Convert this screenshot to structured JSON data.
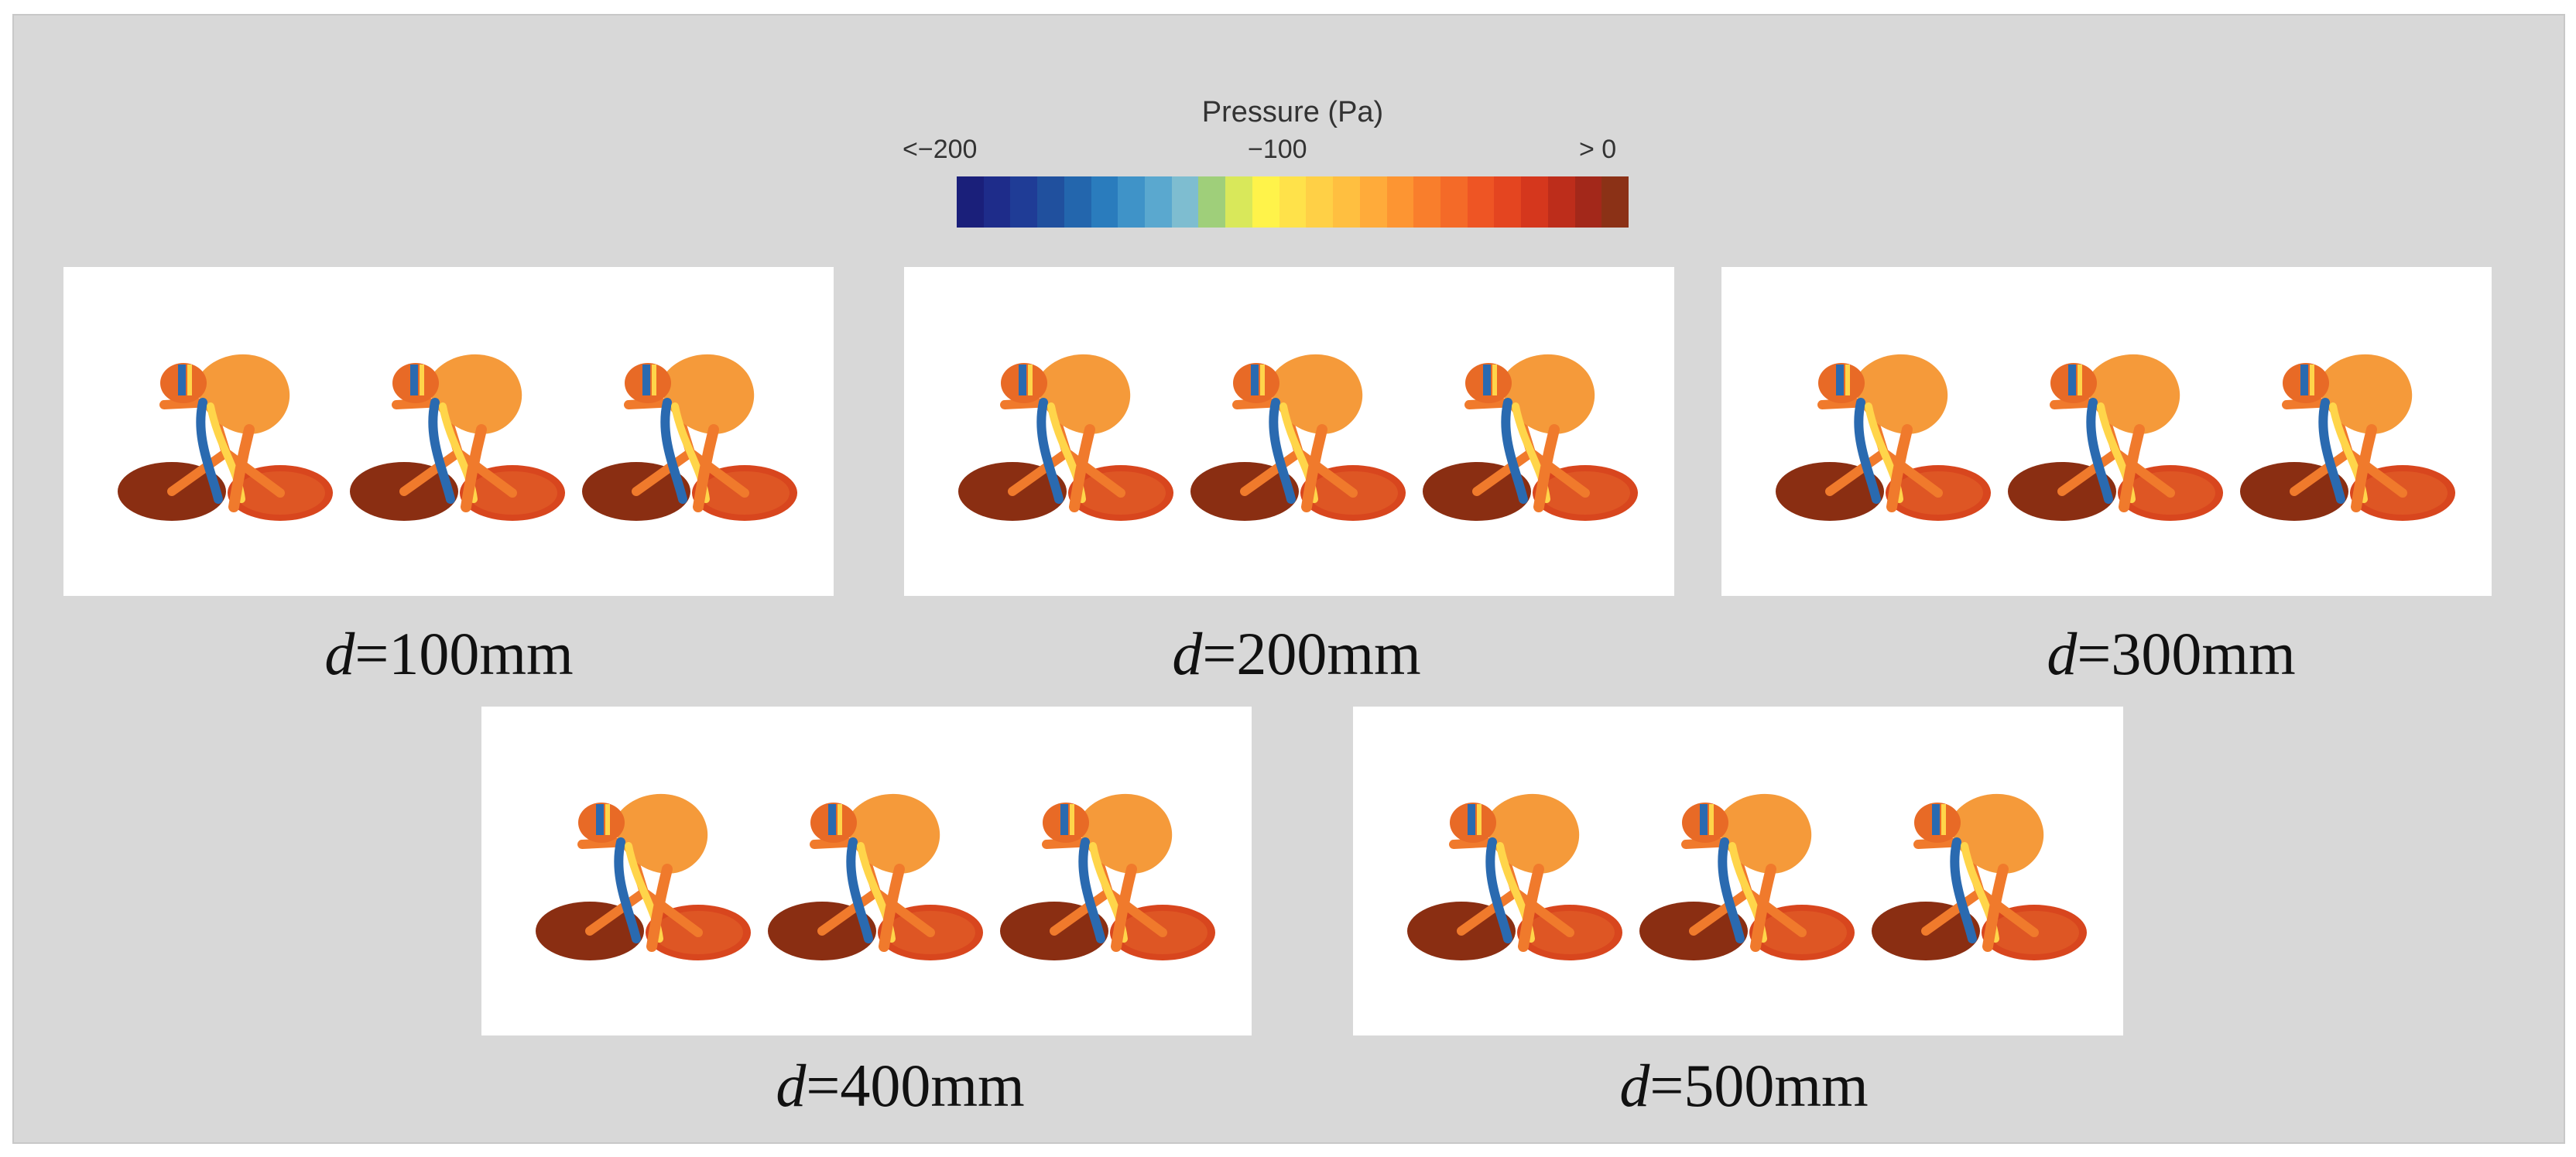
{
  "colorbar": {
    "title": "Pressure (Pa)",
    "tick_min": "<−200",
    "tick_mid": "−100",
    "tick_max": "> 0",
    "colors": [
      "#1a1f7a",
      "#1e2c8a",
      "#1f3c96",
      "#20509e",
      "#2366ad",
      "#2a7cbd",
      "#3f93c8",
      "#5aa8cf",
      "#7ebdd0",
      "#9fcf7a",
      "#d9e85a",
      "#fff34a",
      "#ffe24a",
      "#ffd046",
      "#ffbf40",
      "#ffab3a",
      "#fd9532",
      "#f97e2c",
      "#f46a28",
      "#ee5524",
      "#e44520",
      "#d5371d",
      "#bd2d1b",
      "#a3281a",
      "#8b3116"
    ]
  },
  "panels": [
    {
      "var": "d",
      "value": "=100mm"
    },
    {
      "var": "d",
      "value": "=200mm"
    },
    {
      "var": "d",
      "value": "=300mm"
    },
    {
      "var": "d",
      "value": "=400mm"
    },
    {
      "var": "d",
      "value": "=500mm"
    }
  ],
  "colors": {
    "wheel": "#8a2e12",
    "body": "#f07a2c",
    "torso": "#f59a3a",
    "helmet_stripe": "#2a6ab0",
    "accent_yellow": "#ffd54a"
  }
}
